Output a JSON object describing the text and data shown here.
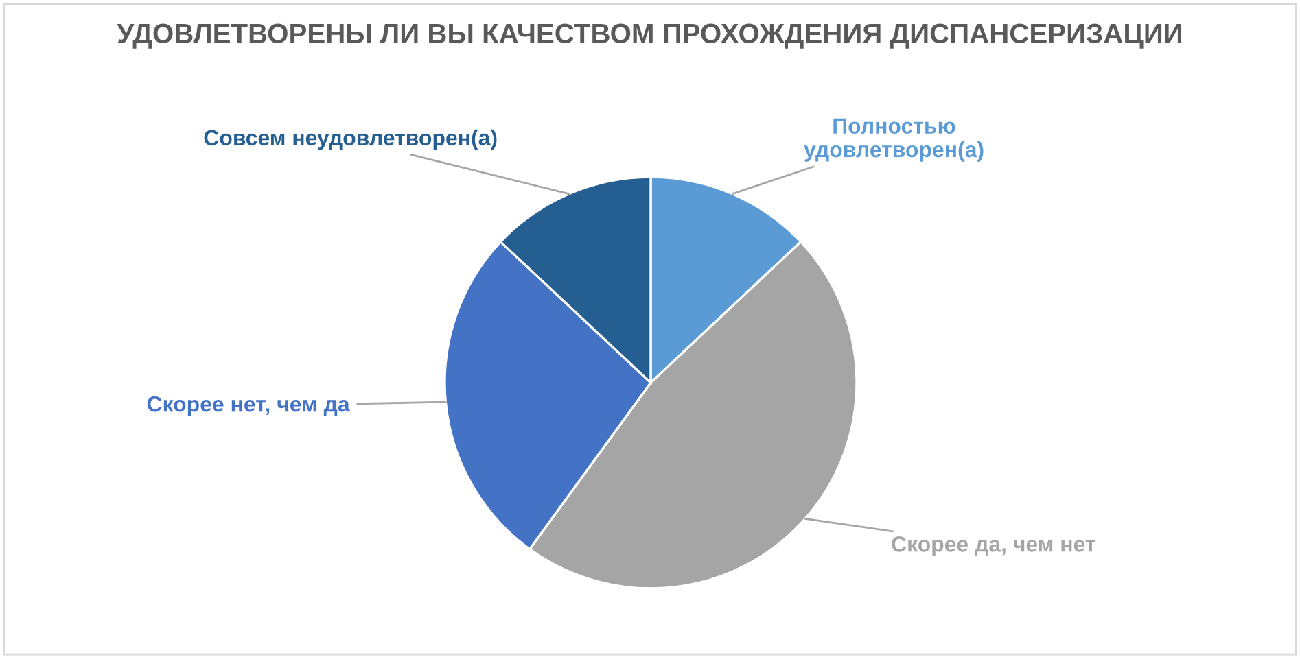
{
  "chart_data": {
    "type": "pie",
    "title": "УДОВЛЕТВОРЕНЫ ЛИ ВЫ КАЧЕСТВОМ ПРОХОЖДЕНИЯ ДИСПАНСЕРИЗАЦИИ",
    "categories": [
      "Полностью\nудовлетворен(а)",
      "Скорее да, чем нет",
      "Скорее нет, чем да",
      "Совсем неудовлетворен(а)"
    ],
    "values": [
      13,
      47,
      27,
      13
    ],
    "colors": [
      "#5b9bd5",
      "#a5a5a5",
      "#4472c4",
      "#255e91"
    ],
    "legend": false
  }
}
